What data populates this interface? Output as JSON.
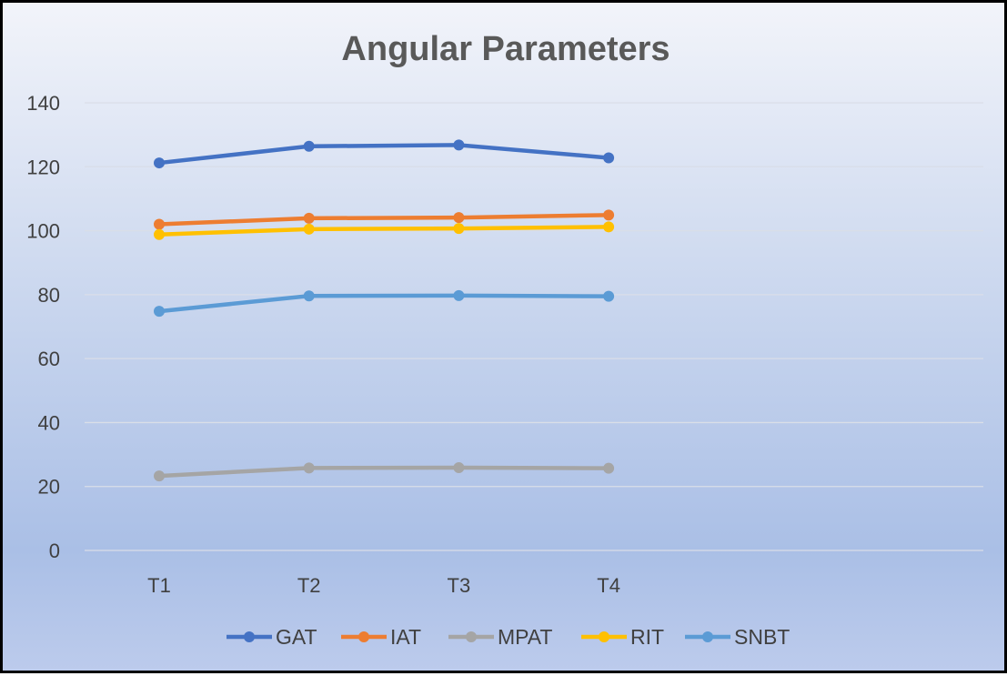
{
  "chart_data": {
    "type": "line",
    "title": "Angular Parameters",
    "xlabel": "",
    "ylabel": "",
    "categories": [
      "T1",
      "T2",
      "T3",
      "T4"
    ],
    "ylim": [
      0,
      140
    ],
    "yticks": [
      0,
      20,
      40,
      60,
      80,
      100,
      120,
      140
    ],
    "grid": true,
    "legend_position": "bottom",
    "series": [
      {
        "name": "GAT",
        "color": "#4472c4",
        "values": [
          121.2,
          126.4,
          126.8,
          122.8
        ]
      },
      {
        "name": "IAT",
        "color": "#ed7d31",
        "values": [
          102.0,
          103.9,
          104.1,
          104.9
        ]
      },
      {
        "name": "MPAT",
        "color": "#a5a5a5",
        "values": [
          23.3,
          25.8,
          25.9,
          25.7
        ]
      },
      {
        "name": "RIT",
        "color": "#ffc000",
        "values": [
          98.8,
          100.5,
          100.7,
          101.2
        ]
      },
      {
        "name": "SNBT",
        "color": "#5b9bd5",
        "values": [
          74.8,
          79.6,
          79.7,
          79.5
        ]
      }
    ]
  }
}
